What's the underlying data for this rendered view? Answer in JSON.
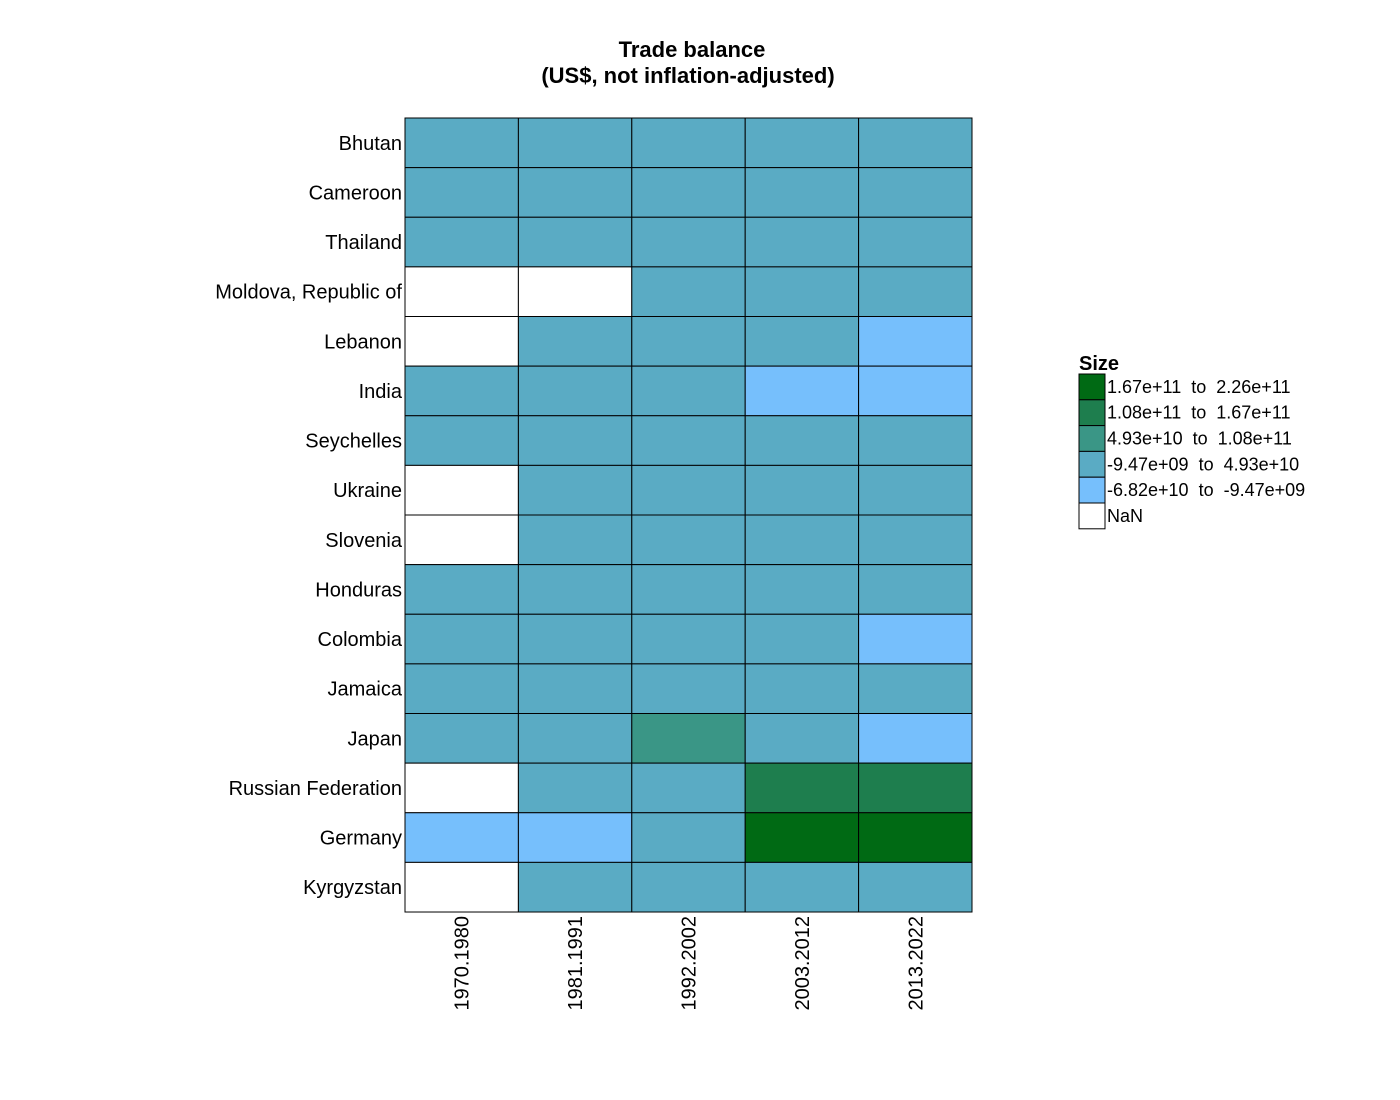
{
  "chart_data": {
    "type": "heatmap",
    "title": "Trade balance",
    "subtitle": "(US$, not inflation-adjusted)",
    "xlabel": "",
    "ylabel": "",
    "x_categories": [
      "1970.1980",
      "1981.1991",
      "1992.2002",
      "2003.2012",
      "2013.2022"
    ],
    "y_categories": [
      "Bhutan",
      "Cameroon",
      "Thailand",
      "Moldova, Republic of",
      "Lebanon",
      "India",
      "Seychelles",
      "Ukraine",
      "Slovenia",
      "Honduras",
      "Colombia",
      "Jamaica",
      "Japan",
      "Russian Federation",
      "Germany",
      "Kyrgyzstan"
    ],
    "cell_bins": [
      [
        3,
        3,
        3,
        3,
        3
      ],
      [
        3,
        3,
        3,
        3,
        3
      ],
      [
        3,
        3,
        3,
        3,
        3
      ],
      [
        5,
        5,
        3,
        3,
        3
      ],
      [
        5,
        3,
        3,
        3,
        4
      ],
      [
        3,
        3,
        3,
        4,
        4
      ],
      [
        3,
        3,
        3,
        3,
        3
      ],
      [
        5,
        3,
        3,
        3,
        3
      ],
      [
        5,
        3,
        3,
        3,
        3
      ],
      [
        3,
        3,
        3,
        3,
        3
      ],
      [
        3,
        3,
        3,
        3,
        4
      ],
      [
        3,
        3,
        3,
        3,
        3
      ],
      [
        3,
        3,
        2,
        3,
        4
      ],
      [
        5,
        3,
        3,
        1,
        1
      ],
      [
        4,
        4,
        3,
        0,
        0
      ],
      [
        5,
        3,
        3,
        3,
        3
      ]
    ],
    "legend": {
      "title": "Size",
      "placement": "right",
      "bins": [
        {
          "label": "1.67e+11  to  2.26e+11",
          "color": "#006a14"
        },
        {
          "label": "1.08e+11  to  1.67e+11",
          "color": "#1e7e4e"
        },
        {
          "label": "4.93e+10  to  1.08e+11",
          "color": "#3a9686"
        },
        {
          "label": "-9.47e+09  to  4.93e+10",
          "color": "#5aabc4"
        },
        {
          "label": "-6.82e+10  to  -9.47e+09",
          "color": "#76bffc"
        },
        {
          "label": "NaN",
          "color": "#ffffff"
        }
      ]
    },
    "grid": true,
    "grid_color": "#000000"
  }
}
